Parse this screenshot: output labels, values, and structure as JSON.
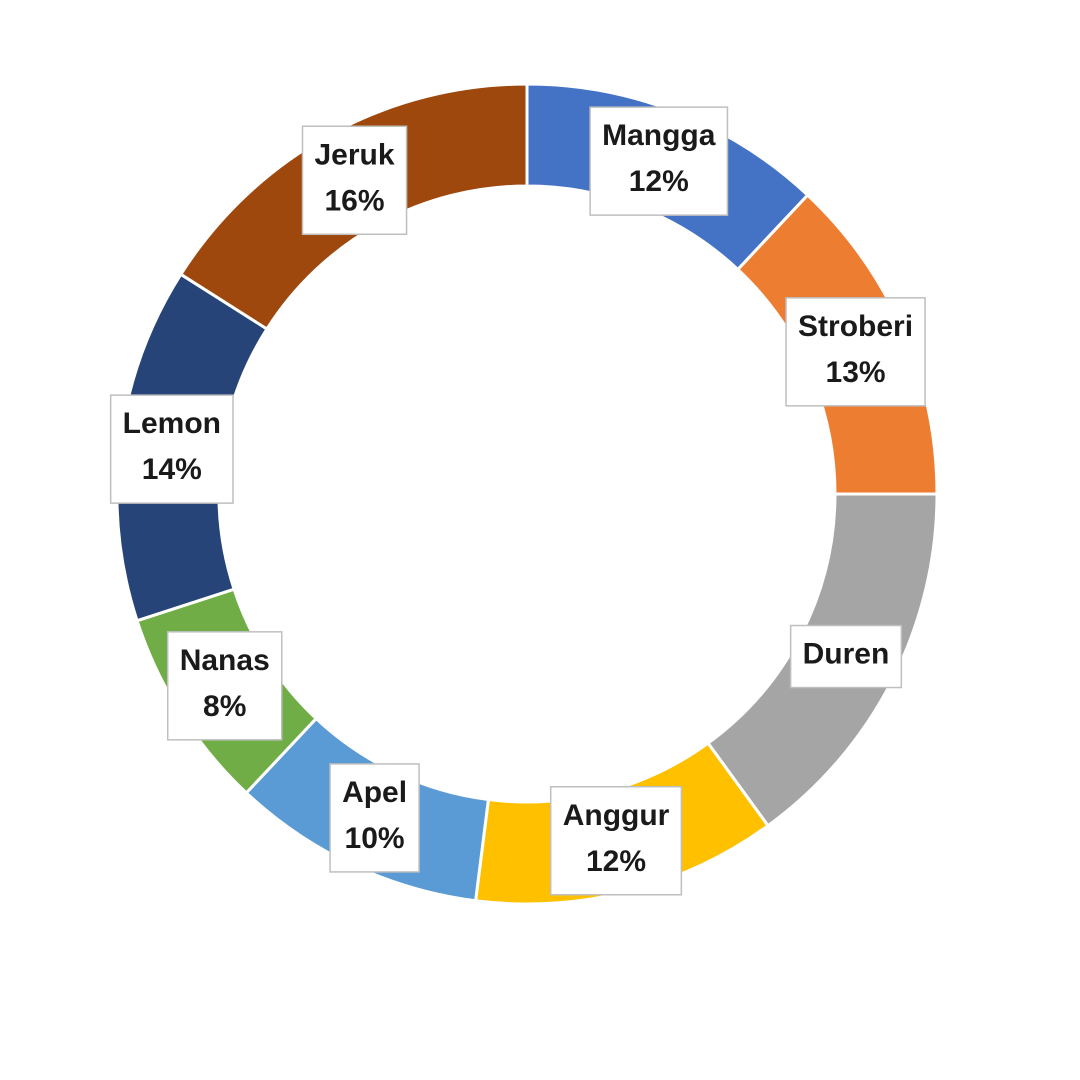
{
  "chart_data": {
    "type": "donut",
    "title": "",
    "series": [
      {
        "label": "Mangga",
        "value": 12,
        "display": "12%",
        "color": "#4472C4"
      },
      {
        "label": "Stroberi",
        "value": 13,
        "display": "13%",
        "color": "#ED7D31"
      },
      {
        "label": "Duren",
        "value": 15,
        "display": "",
        "color": "#A5A5A5"
      },
      {
        "label": "Anggur",
        "value": 12,
        "display": "12%",
        "color": "#FFC000"
      },
      {
        "label": "Apel",
        "value": 10,
        "display": "10%",
        "color": "#5B9BD5"
      },
      {
        "label": "Nanas",
        "value": 8,
        "display": "8%",
        "color": "#70AD47"
      },
      {
        "label": "Lemon",
        "value": 14,
        "display": "14%",
        "color": "#264478"
      },
      {
        "label": "Jeruk",
        "value": 16,
        "display": "16%",
        "color": "#9E480E"
      }
    ],
    "legend": "none",
    "start_angle": "12 o'clock",
    "direction": "clockwise"
  }
}
